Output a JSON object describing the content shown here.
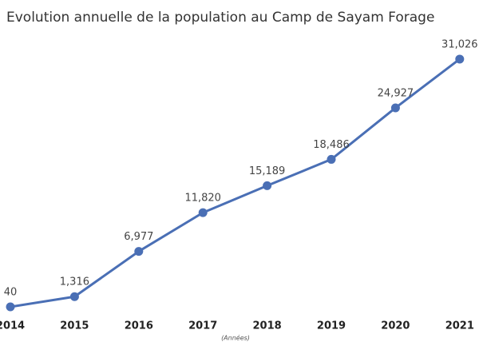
{
  "chart_data": {
    "type": "line",
    "title": "Evolution annuelle de la population au Camp de Sayam Forage",
    "x_label": "(Années)",
    "categories": [
      "2014",
      "2015",
      "2016",
      "2017",
      "2018",
      "2019",
      "2020",
      "2021"
    ],
    "values": [
      40,
      1316,
      6977,
      11820,
      15189,
      18486,
      24927,
      31026
    ],
    "value_labels": [
      "40",
      "1,316",
      "6,977",
      "11,820",
      "15,189",
      "18,486",
      "24,927",
      "31,026"
    ],
    "color": "#4a6fb5",
    "ylim": [
      0,
      32000
    ]
  }
}
